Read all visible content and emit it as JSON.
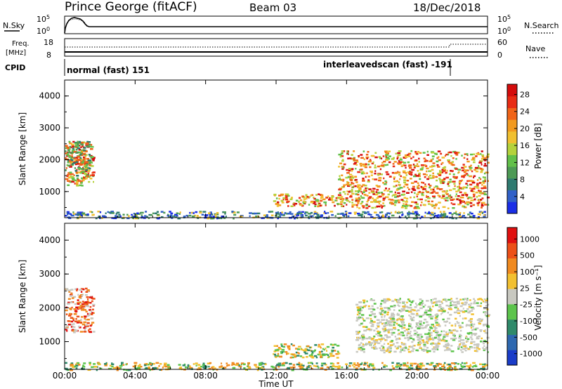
{
  "header": {
    "station": "Prince George (fitACF)",
    "beam": "Beam 03",
    "date": "18/Dec/2018"
  },
  "panels": {
    "nsky": {
      "label": "N.Sky",
      "ticks": [
        "10^5",
        "10^0"
      ],
      "right_label": "N.Search",
      "right_ticks": [
        "10^5",
        "10^0"
      ]
    },
    "freq": {
      "label_line1": "Freq.",
      "label_line2": "[MHz]",
      "ticks": [
        "18",
        "8"
      ],
      "right_label": "Nave",
      "right_ticks": [
        "60",
        "0"
      ]
    },
    "cpid": {
      "label": "CPID",
      "segments": [
        {
          "text": "normal (fast) 151",
          "start_hour": 0.0
        },
        {
          "text": "interleavedscan (fast) -191",
          "start_hour": 21.9
        }
      ]
    }
  },
  "chart_data": [
    {
      "type": "heatmap",
      "name": "Power",
      "ylabel": "Slant Range [km]",
      "ylim": [
        180,
        4500
      ],
      "yticks": [
        "1000",
        "2000",
        "3000",
        "4000"
      ],
      "xlim_hours": [
        0,
        24
      ],
      "xticks": [
        "00:00",
        "04:00",
        "08:00",
        "12:00",
        "16:00",
        "20:00",
        "00:00"
      ],
      "colorbar": {
        "label": "Power [dB]",
        "ticks": [
          "4",
          "8",
          "12",
          "16",
          "20",
          "24",
          "28"
        ],
        "colors": [
          "#1a2ee6",
          "#3060c8",
          "#2f7a70",
          "#4d9a55",
          "#62c04a",
          "#b4d23c",
          "#f0c030",
          "#f29a20",
          "#f06418",
          "#e82c14",
          "#d40c0c"
        ]
      },
      "regions": [
        {
          "t": [
            0.0,
            1.3
          ],
          "r": [
            1200,
            2600
          ],
          "level": "high"
        },
        {
          "t": [
            1.0,
            1.6
          ],
          "r": [
            1300,
            2200
          ],
          "level": "high"
        },
        {
          "t": [
            11.8,
            15.8
          ],
          "r": [
            550,
            950
          ],
          "level": "high"
        },
        {
          "t": [
            15.5,
            24.0
          ],
          "r": [
            500,
            2300
          ],
          "level": "high"
        },
        {
          "t": [
            0.0,
            24.0
          ],
          "r": [
            180,
            400
          ],
          "level": "low"
        },
        {
          "t": [
            0.0,
            1.5
          ],
          "r": [
            1500,
            2600
          ],
          "level": "mid"
        }
      ]
    },
    {
      "type": "heatmap",
      "name": "Velocity",
      "ylabel": "Slant Range [km]",
      "ylim": [
        180,
        4500
      ],
      "yticks": [
        "1000",
        "2000",
        "3000",
        "4000"
      ],
      "xlim_hours": [
        0,
        24
      ],
      "xticks": [
        "00:00",
        "04:00",
        "08:00",
        "12:00",
        "16:00",
        "20:00",
        "00:00"
      ],
      "xlabel": "Time UT",
      "colorbar": {
        "label": "Velocity [m s⁻¹]",
        "ticks": [
          "1000",
          "500",
          "100",
          "25",
          "-25",
          "-100",
          "-500",
          "-1000"
        ],
        "colors": [
          "#1a3cc8",
          "#2e68b0",
          "#2f8a6a",
          "#5cc44c",
          "#c8c8c0",
          "#f2c030",
          "#f08a20",
          "#ec5018",
          "#e01010"
        ]
      },
      "regions": [
        {
          "t": [
            0.0,
            1.6
          ],
          "r": [
            1300,
            2600
          ],
          "v": "toward (red/orange)"
        },
        {
          "t": [
            11.8,
            15.5
          ],
          "r": [
            550,
            950
          ],
          "v": "green/orange mix"
        },
        {
          "t": [
            16.5,
            24.0
          ],
          "r": [
            700,
            2300
          ],
          "v": "near-zero (gray)"
        },
        {
          "t": [
            0.0,
            24.0
          ],
          "r": [
            180,
            400
          ],
          "v": "low-velocity (gray/green)"
        }
      ]
    }
  ]
}
